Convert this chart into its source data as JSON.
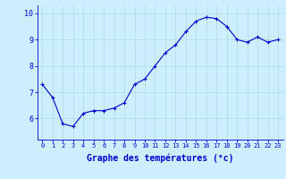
{
  "x": [
    0,
    1,
    2,
    3,
    4,
    5,
    6,
    7,
    8,
    9,
    10,
    11,
    12,
    13,
    14,
    15,
    16,
    17,
    18,
    19,
    20,
    21,
    22,
    23
  ],
  "y": [
    7.3,
    6.8,
    5.8,
    5.7,
    6.2,
    6.3,
    6.3,
    6.4,
    6.6,
    7.3,
    7.5,
    8.0,
    8.5,
    8.8,
    9.3,
    9.7,
    9.85,
    9.8,
    9.5,
    9.0,
    8.9,
    9.1,
    8.9,
    9.0
  ],
  "line_color": "#0000cc",
  "marker": "+",
  "marker_size": 3,
  "background_color": "#cceeff",
  "grid_color": "#aadddd",
  "axis_color": "#0000cc",
  "xlabel": "Graphe des températures (°c)",
  "xlabel_fontsize": 7,
  "ylim": [
    5.2,
    10.3
  ],
  "yticks": [
    6,
    7,
    8,
    9,
    10
  ],
  "xtick_labels": [
    "0",
    "1",
    "2",
    "3",
    "4",
    "5",
    "6",
    "7",
    "8",
    "9",
    "10",
    "11",
    "12",
    "13",
    "14",
    "15",
    "16",
    "17",
    "18",
    "19",
    "20",
    "21",
    "22",
    "23"
  ]
}
